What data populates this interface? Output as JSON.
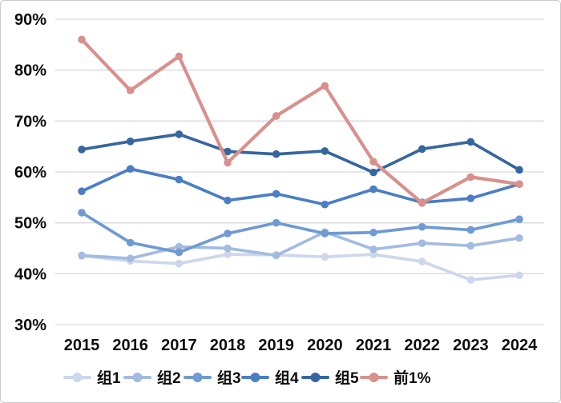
{
  "chart_data": {
    "type": "line",
    "title": "",
    "xlabel": "",
    "ylabel": "",
    "x": [
      2015,
      2016,
      2017,
      2018,
      2019,
      2020,
      2021,
      2022,
      2023,
      2024
    ],
    "x_tick_labels": [
      "2015",
      "2016",
      "2017",
      "2018",
      "2019",
      "2020",
      "2021",
      "2022",
      "2023",
      "2024"
    ],
    "y_axis": {
      "min": 30,
      "max": 90,
      "step": 10,
      "tick_labels_top_to_bottom": [
        "90%",
        "80%",
        "70%",
        "60%",
        "50%",
        "40%",
        "30%"
      ],
      "format": "percent"
    },
    "grid": true,
    "legend_position": "bottom",
    "series": [
      {
        "name": "组1",
        "color": "#cdd7eb",
        "values": [
          43.5,
          42.5,
          42.0,
          43.8,
          43.7,
          43.3,
          43.8,
          42.4,
          38.8,
          39.7
        ]
      },
      {
        "name": "组2",
        "color": "#a4bbe0",
        "values": [
          43.6,
          43.0,
          45.3,
          45.0,
          43.6,
          48.2,
          44.8,
          46.0,
          45.5,
          47.0
        ]
      },
      {
        "name": "组3",
        "color": "#6f9ad3",
        "values": [
          52.0,
          46.1,
          44.2,
          47.9,
          50.0,
          47.9,
          48.1,
          49.2,
          48.6,
          50.7
        ]
      },
      {
        "name": "组4",
        "color": "#4a7ec5",
        "values": [
          56.2,
          60.6,
          58.5,
          54.4,
          55.7,
          53.6,
          56.6,
          54.0,
          54.8,
          57.6
        ]
      },
      {
        "name": "组5",
        "color": "#35669f",
        "values": [
          64.4,
          66.0,
          67.4,
          64.0,
          63.5,
          64.1,
          59.9,
          64.5,
          65.9,
          60.4
        ]
      },
      {
        "name": "前1%",
        "color": "#d9908c",
        "values": [
          86.0,
          76.0,
          82.7,
          61.8,
          71.0,
          76.9,
          62.0,
          53.9,
          59.0,
          57.6
        ]
      }
    ]
  },
  "colors": {
    "grid_line": "#d9d9d9",
    "text": "#0d0d0d",
    "frame_border": "#c9c9c9",
    "background": "#ffffff"
  }
}
